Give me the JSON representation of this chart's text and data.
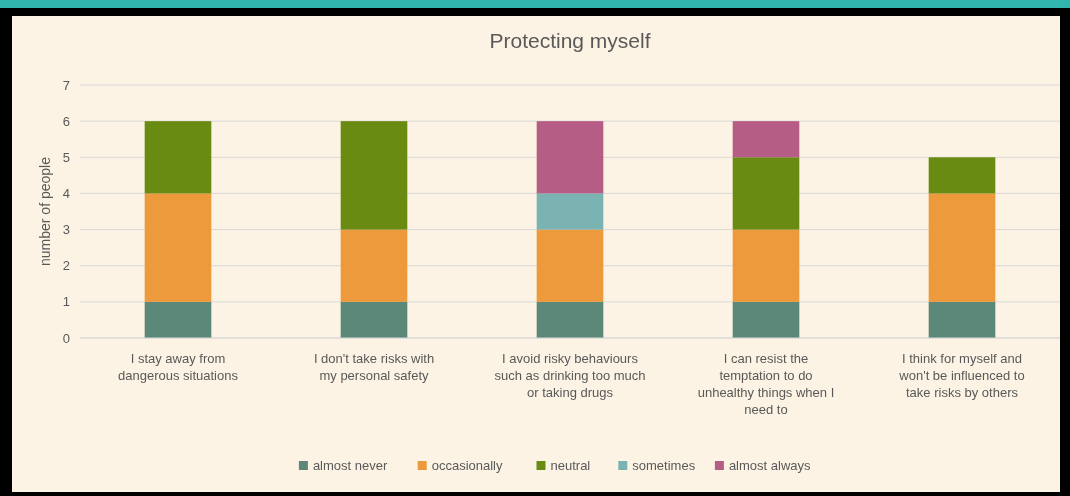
{
  "chart_data": {
    "type": "bar",
    "title": "Protecting myself",
    "ylabel": "number of people",
    "stacked": true,
    "categories": [
      "I stay away from dangerous situations",
      "I don't take risks with my personal safety",
      "I avoid risky behaviours such as drinking too much or taking drugs",
      "I can resist the temptation to do unhealthy things when I need to",
      "I think for myself and won't be influenced to take risks by others"
    ],
    "series": [
      {
        "name": "almost never",
        "color": "#5b8878",
        "values": [
          1,
          1,
          1,
          1,
          1
        ]
      },
      {
        "name": "occasionally",
        "color": "#ec9a3b",
        "values": [
          3,
          2,
          2,
          2,
          3
        ]
      },
      {
        "name": "neutral",
        "color": "#6a8b12",
        "values": [
          2,
          3,
          0,
          2,
          1
        ]
      },
      {
        "name": "sometimes",
        "color": "#7ab3b2",
        "values": [
          0,
          0,
          1,
          0,
          0
        ]
      },
      {
        "name": "almost always",
        "color": "#b65d86",
        "values": [
          0,
          0,
          2,
          1,
          0
        ]
      }
    ],
    "ylim": [
      0,
      7
    ],
    "yticks": [
      0,
      1,
      2,
      3,
      4,
      5,
      6,
      7
    ],
    "grid": "y",
    "legend": "bottom"
  }
}
